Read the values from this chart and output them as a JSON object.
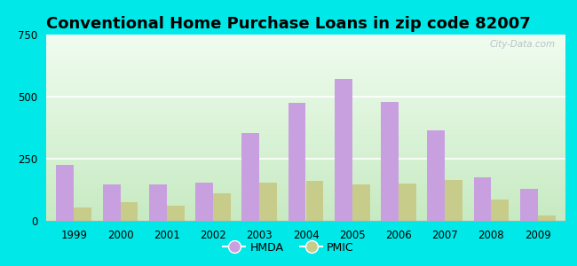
{
  "title": "Conventional Home Purchase Loans in zip code 82007",
  "years": [
    1999,
    2000,
    2001,
    2002,
    2003,
    2004,
    2005,
    2006,
    2007,
    2008,
    2009
  ],
  "hmda": [
    225,
    145,
    145,
    155,
    355,
    475,
    570,
    480,
    365,
    175,
    130
  ],
  "pmic": [
    55,
    75,
    60,
    110,
    155,
    160,
    145,
    150,
    165,
    85,
    20
  ],
  "hmda_color": "#c8a0e0",
  "pmic_color": "#c8cc8a",
  "ylim": [
    0,
    750
  ],
  "yticks": [
    0,
    250,
    500,
    750
  ],
  "title_fontsize": 13,
  "bg_outer": "#00e8e8",
  "plot_bg_top": "#f0f8f0",
  "plot_bg_bottom": "#c8e8c0",
  "watermark": "City-Data.com",
  "bar_width": 0.38
}
